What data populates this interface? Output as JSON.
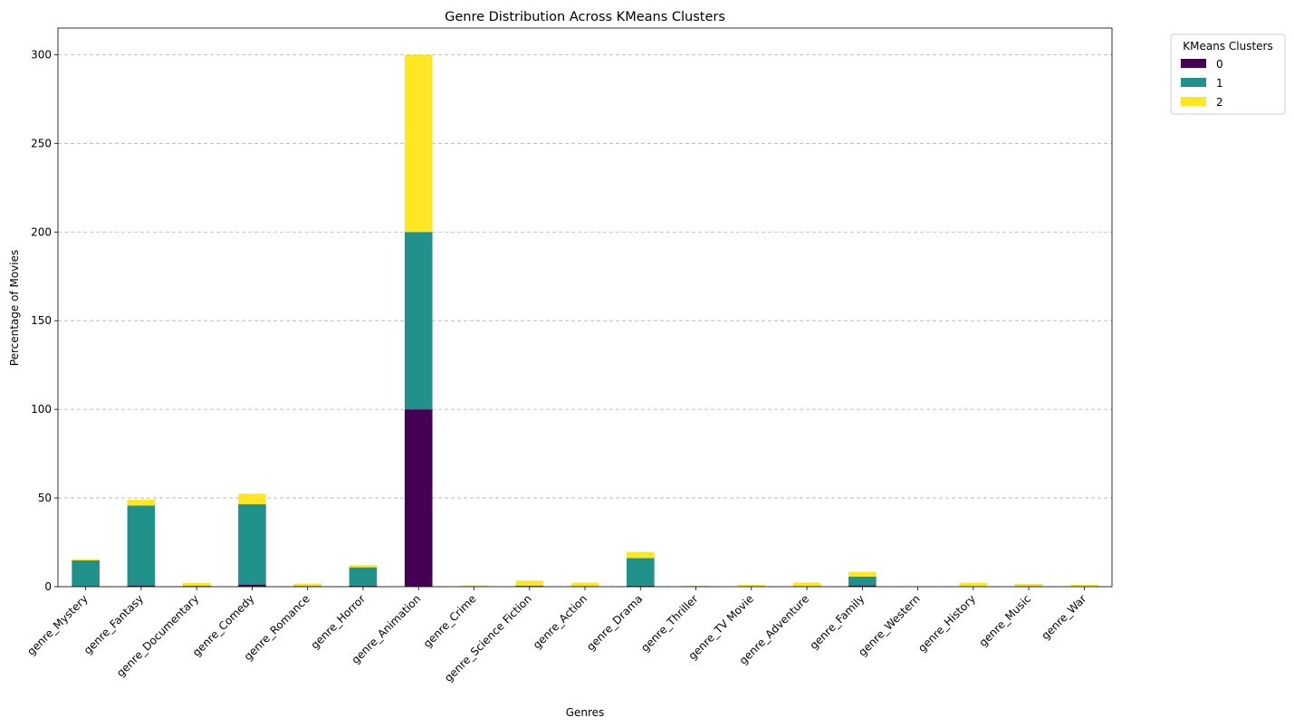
{
  "chart_data": {
    "type": "bar",
    "stacked": true,
    "title": "Genre Distribution Across KMeans Clusters",
    "xlabel": "Genres",
    "ylabel": "Percentage of Movies",
    "ylim": [
      0,
      315
    ],
    "yticks": [
      0,
      50,
      100,
      150,
      200,
      250,
      300
    ],
    "grid": "y-dashed",
    "legend": {
      "title": "KMeans Clusters",
      "placement": "outside-top-right"
    },
    "categories": [
      "genre_Mystery",
      "genre_Fantasy",
      "genre_Documentary",
      "genre_Comedy",
      "genre_Romance",
      "genre_Horror",
      "genre_Animation",
      "genre_Crime",
      "genre_Science Fiction",
      "genre_Action",
      "genre_Drama",
      "genre_Thriller",
      "genre_TV Movie",
      "genre_Adventure",
      "genre_Family",
      "genre_Western",
      "genre_History",
      "genre_Music",
      "genre_War"
    ],
    "series": [
      {
        "name": "0",
        "color": "#440154",
        "values": [
          0,
          0.7,
          0.3,
          1.2,
          0.2,
          0.6,
          100,
          0,
          0.3,
          0.2,
          0.6,
          0,
          0,
          0.2,
          0.7,
          0,
          0,
          0.2,
          0
        ]
      },
      {
        "name": "1",
        "color": "#21918c",
        "values": [
          14.8,
          45,
          0.2,
          45.3,
          0.2,
          10.3,
          100,
          0,
          0.3,
          0.1,
          15.5,
          0,
          0,
          0.1,
          5,
          0,
          0,
          0,
          0
        ]
      },
      {
        "name": "2",
        "color": "#fde725",
        "values": [
          0.7,
          3.3,
          1.6,
          5.9,
          1.3,
          1.2,
          100,
          0.7,
          2.9,
          1.9,
          3.5,
          0.6,
          1,
          2,
          2.7,
          0.2,
          2.2,
          1.4,
          1.1
        ]
      }
    ]
  }
}
